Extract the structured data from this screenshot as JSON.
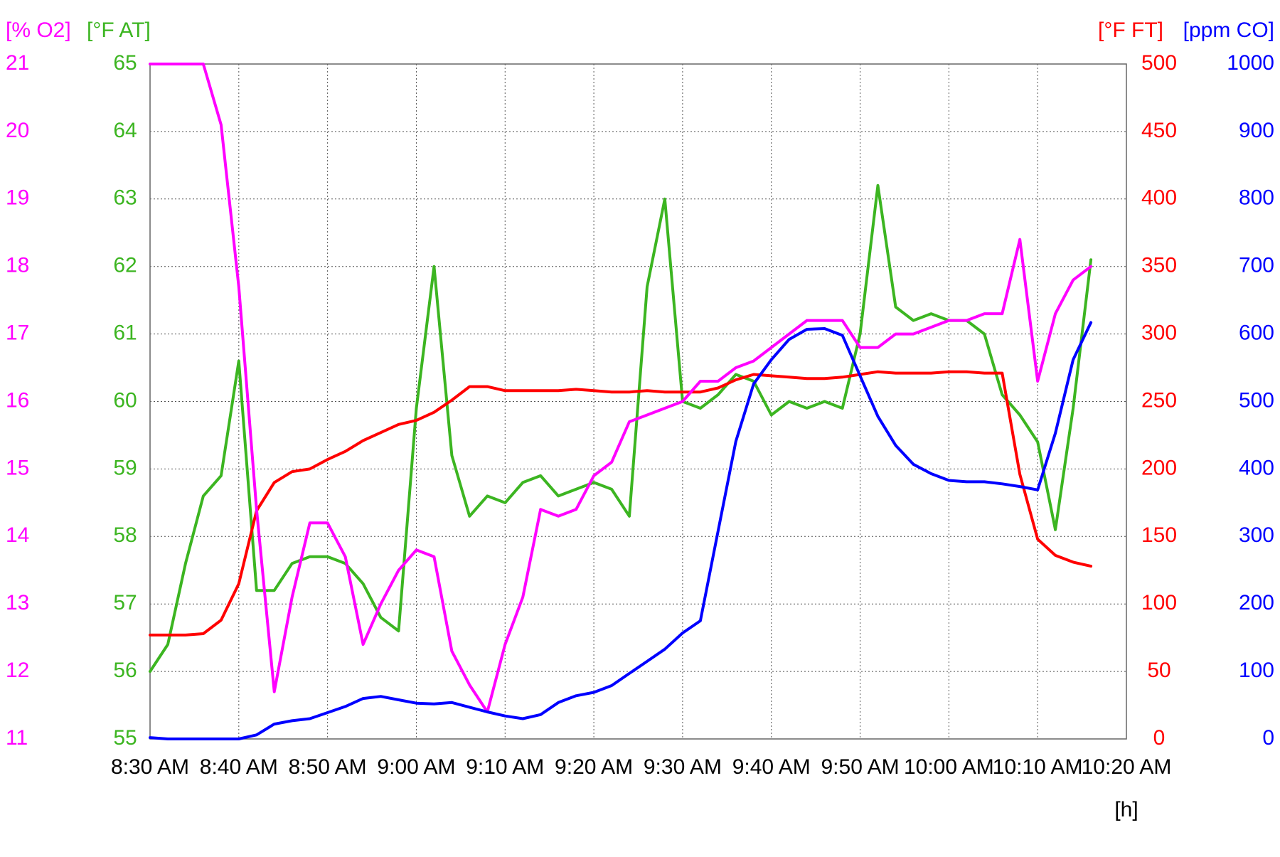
{
  "chart_data": {
    "type": "line",
    "x": [
      "8:30 AM",
      "8:32 AM",
      "8:34 AM",
      "8:36 AM",
      "8:38 AM",
      "8:40 AM",
      "8:42 AM",
      "8:44 AM",
      "8:46 AM",
      "8:48 AM",
      "8:50 AM",
      "8:52 AM",
      "8:54 AM",
      "8:56 AM",
      "8:58 AM",
      "9:00 AM",
      "9:02 AM",
      "9:04 AM",
      "9:06 AM",
      "9:08 AM",
      "9:10 AM",
      "9:12 AM",
      "9:14 AM",
      "9:16 AM",
      "9:18 AM",
      "9:20 AM",
      "9:22 AM",
      "9:24 AM",
      "9:26 AM",
      "9:28 AM",
      "9:30 AM",
      "9:32 AM",
      "9:34 AM",
      "9:36 AM",
      "9:38 AM",
      "9:40 AM",
      "9:42 AM",
      "9:44 AM",
      "9:46 AM",
      "9:48 AM",
      "9:50 AM",
      "9:52 AM",
      "9:54 AM",
      "9:56 AM",
      "9:58 AM",
      "10:00 AM",
      "10:02 AM",
      "10:04 AM",
      "10:06 AM",
      "10:08 AM",
      "10:10 AM",
      "10:12 AM",
      "10:14 AM",
      "10:16 AM"
    ],
    "xlim": [
      "8:30 AM",
      "10:20 AM"
    ],
    "xticks": [
      "8:30 AM",
      "8:40 AM",
      "8:50 AM",
      "9:00 AM",
      "9:10 AM",
      "9:20 AM",
      "9:30 AM",
      "9:40 AM",
      "9:50 AM",
      "10:00 AM",
      "10:10 AM",
      "10:20 AM"
    ],
    "x_label": "[h]",
    "grid": true,
    "y_axes": [
      {
        "label": "[% O2]",
        "color": "#ff00ff",
        "side": "left",
        "lim": [
          11,
          21
        ],
        "ticks": [
          11,
          12,
          13,
          14,
          15,
          16,
          17,
          18,
          19,
          20,
          21
        ]
      },
      {
        "label": "[°F AT]",
        "color": "#3cb521",
        "side": "left",
        "lim": [
          55,
          65
        ],
        "ticks": [
          55,
          56,
          57,
          58,
          59,
          60,
          61,
          62,
          63,
          64,
          65
        ]
      },
      {
        "label": "[°F FT]",
        "color": "#ff0000",
        "side": "right",
        "lim": [
          0,
          500
        ],
        "ticks": [
          0,
          50,
          100,
          150,
          200,
          250,
          300,
          350,
          400,
          450,
          500
        ]
      },
      {
        "label": "[ppm CO]",
        "color": "#0000ff",
        "side": "right",
        "lim": [
          0,
          1000
        ],
        "ticks": [
          0,
          100,
          200,
          300,
          400,
          500,
          600,
          700,
          800,
          900,
          1000
        ]
      }
    ],
    "series": [
      {
        "axis": 1,
        "color": "#3cb521",
        "values": [
          56.0,
          56.4,
          57.6,
          58.6,
          58.9,
          60.6,
          57.2,
          57.2,
          57.6,
          57.7,
          57.7,
          57.6,
          57.3,
          56.8,
          56.6,
          59.9,
          62.0,
          59.2,
          58.3,
          58.6,
          58.5,
          58.8,
          58.9,
          58.6,
          58.7,
          58.8,
          58.7,
          58.3,
          61.7,
          63.0,
          60.0,
          59.9,
          60.1,
          60.4,
          60.3,
          59.8,
          60.0,
          59.9,
          60.0,
          59.9,
          61.0,
          63.2,
          61.4,
          61.2,
          61.3,
          61.2,
          61.2,
          61.0,
          60.1,
          59.8,
          59.4,
          58.1,
          59.9,
          62.1
        ]
      },
      {
        "axis": 2,
        "color": "#ff0000",
        "values": [
          77,
          77,
          77,
          78,
          88,
          115,
          169,
          190,
          198,
          200,
          207,
          213,
          221,
          227,
          233,
          236,
          242,
          251,
          261,
          261,
          258,
          258,
          258,
          258,
          259,
          258,
          257,
          257,
          258,
          257,
          257,
          257,
          260,
          266,
          270,
          269,
          268,
          267,
          267,
          268,
          270,
          272,
          271,
          271,
          271,
          272,
          272,
          271,
          271,
          196,
          148,
          136,
          131,
          128
        ]
      },
      {
        "axis": 0,
        "color": "#ff00ff",
        "values": [
          21,
          21,
          21,
          21,
          20.1,
          17.7,
          14.4,
          11.7,
          13.1,
          14.2,
          14.2,
          13.7,
          12.4,
          13.0,
          13.5,
          13.8,
          13.7,
          12.3,
          11.8,
          11.4,
          12.4,
          13.1,
          14.4,
          14.3,
          14.4,
          14.9,
          15.1,
          15.7,
          15.8,
          15.9,
          16.0,
          16.3,
          16.3,
          16.5,
          16.6,
          16.8,
          17.0,
          17.2,
          17.2,
          17.2,
          16.8,
          16.8,
          17.0,
          17.0,
          17.1,
          17.2,
          17.2,
          17.3,
          17.3,
          18.4,
          16.3,
          17.3,
          17.8,
          18.0
        ]
      },
      {
        "axis": 3,
        "color": "#0000ff",
        "values": [
          2,
          0,
          0,
          0,
          0,
          0,
          6,
          22,
          27,
          30,
          39,
          48,
          60,
          63,
          58,
          53,
          52,
          54,
          47,
          40,
          34,
          30,
          36,
          54,
          64,
          69,
          79,
          97,
          115,
          133,
          157,
          175,
          308,
          441,
          526,
          562,
          592,
          607,
          608,
          598,
          538,
          478,
          435,
          407,
          393,
          383,
          381,
          381,
          378,
          374,
          369,
          453,
          562,
          617
        ]
      }
    ]
  }
}
